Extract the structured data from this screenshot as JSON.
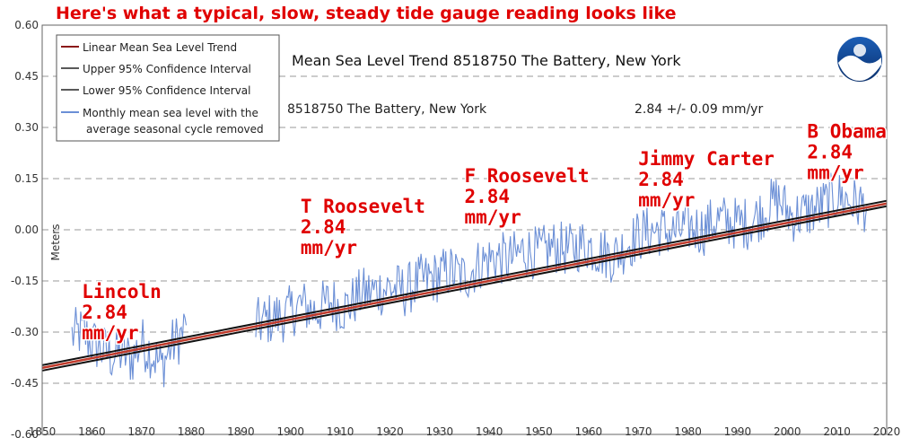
{
  "headline": "Here's what a typical, slow, steady tide gauge reading looks like",
  "chart_data": {
    "type": "line",
    "title": "Mean Sea Level Trend  8518750 The Battery, New York",
    "subtitle": "8518750 The Battery, New York",
    "trend_text": "2.84 +/-  0.09 mm/yr",
    "ylabel": "Meters",
    "xlabel": "",
    "xlim": [
      1850,
      2020
    ],
    "ylim": [
      -0.6,
      0.6
    ],
    "x_ticks": [
      "1850",
      "1860",
      "1870",
      "1880",
      "1890",
      "1900",
      "1910",
      "1920",
      "1930",
      "1940",
      "1950",
      "1960",
      "1970",
      "1980",
      "1990",
      "2000",
      "2010",
      "2020"
    ],
    "y_ticks": [
      "0.60",
      "0.45",
      "0.30",
      "0.15",
      "0.00",
      "-0.15",
      "-0.30",
      "-0.45",
      "-0.60"
    ],
    "grid": "horizontal-dashed",
    "legend_position": "top-left",
    "legend": [
      {
        "label": "Linear Mean Sea Level Trend",
        "color": "#8b1a1a"
      },
      {
        "label": "Upper 95% Confidence Interval",
        "color": "#222222"
      },
      {
        "label": "Lower 95% Confidence Interval",
        "color": "#222222"
      },
      {
        "label": "Monthly mean sea level with the",
        "label2": "average seasonal cycle removed",
        "color": "#6b8fd6"
      }
    ],
    "trend": {
      "x": [
        1850,
        2020
      ],
      "y": [
        -0.405,
        0.077
      ]
    },
    "series": [
      {
        "name": "Monthly mean sea level with the average seasonal cycle removed",
        "color": "#6b8fd6",
        "x": [
          1856,
          1858,
          1860,
          1862,
          1864,
          1866,
          1868,
          1870,
          1872,
          1874,
          1876,
          1878,
          1879
        ],
        "y": [
          -0.31,
          -0.3,
          -0.33,
          -0.35,
          -0.37,
          -0.36,
          -0.38,
          -0.33,
          -0.36,
          -0.4,
          -0.34,
          -0.31,
          -0.28
        ]
      },
      {
        "name": "",
        "color": "#6b8fd6",
        "x": [
          1893,
          1896,
          1899,
          1902,
          1905,
          1908,
          1911,
          1914,
          1917,
          1920,
          1923,
          1926,
          1929,
          1932,
          1935,
          1938,
          1941,
          1944,
          1947,
          1950,
          1953,
          1956,
          1959,
          1962,
          1965,
          1968,
          1971,
          1974,
          1977,
          1980,
          1983,
          1986,
          1989,
          1992,
          1995,
          1998,
          2001,
          2004,
          2007,
          2010,
          2013,
          2016
        ],
        "y": [
          -0.28,
          -0.26,
          -0.25,
          -0.22,
          -0.24,
          -0.21,
          -0.23,
          -0.19,
          -0.18,
          -0.17,
          -0.18,
          -0.15,
          -0.14,
          -0.12,
          -0.14,
          -0.1,
          -0.08,
          -0.09,
          -0.06,
          -0.07,
          -0.05,
          -0.06,
          -0.04,
          -0.06,
          -0.08,
          -0.04,
          -0.01,
          0.0,
          -0.01,
          0.01,
          0.0,
          0.03,
          0.02,
          0.02,
          0.05,
          0.09,
          0.04,
          0.05,
          0.07,
          0.1,
          0.08,
          0.07
        ]
      }
    ],
    "annotations": [
      {
        "lines": [
          "Lincoln",
          "2.84",
          "mm/yr"
        ],
        "x": 1858,
        "y": -0.2
      },
      {
        "lines": [
          "T Roosevelt",
          "2.84",
          "mm/yr"
        ],
        "x": 1902,
        "y": 0.05
      },
      {
        "lines": [
          "F Roosevelt",
          "2.84",
          "mm/yr"
        ],
        "x": 1935,
        "y": 0.14
      },
      {
        "lines": [
          "Jimmy Carter",
          "2.84",
          "mm/yr"
        ],
        "x": 1970,
        "y": 0.19
      },
      {
        "lines": [
          "B Obama",
          "2.84",
          "mm/yr"
        ],
        "x": 2004,
        "y": 0.27
      }
    ]
  }
}
